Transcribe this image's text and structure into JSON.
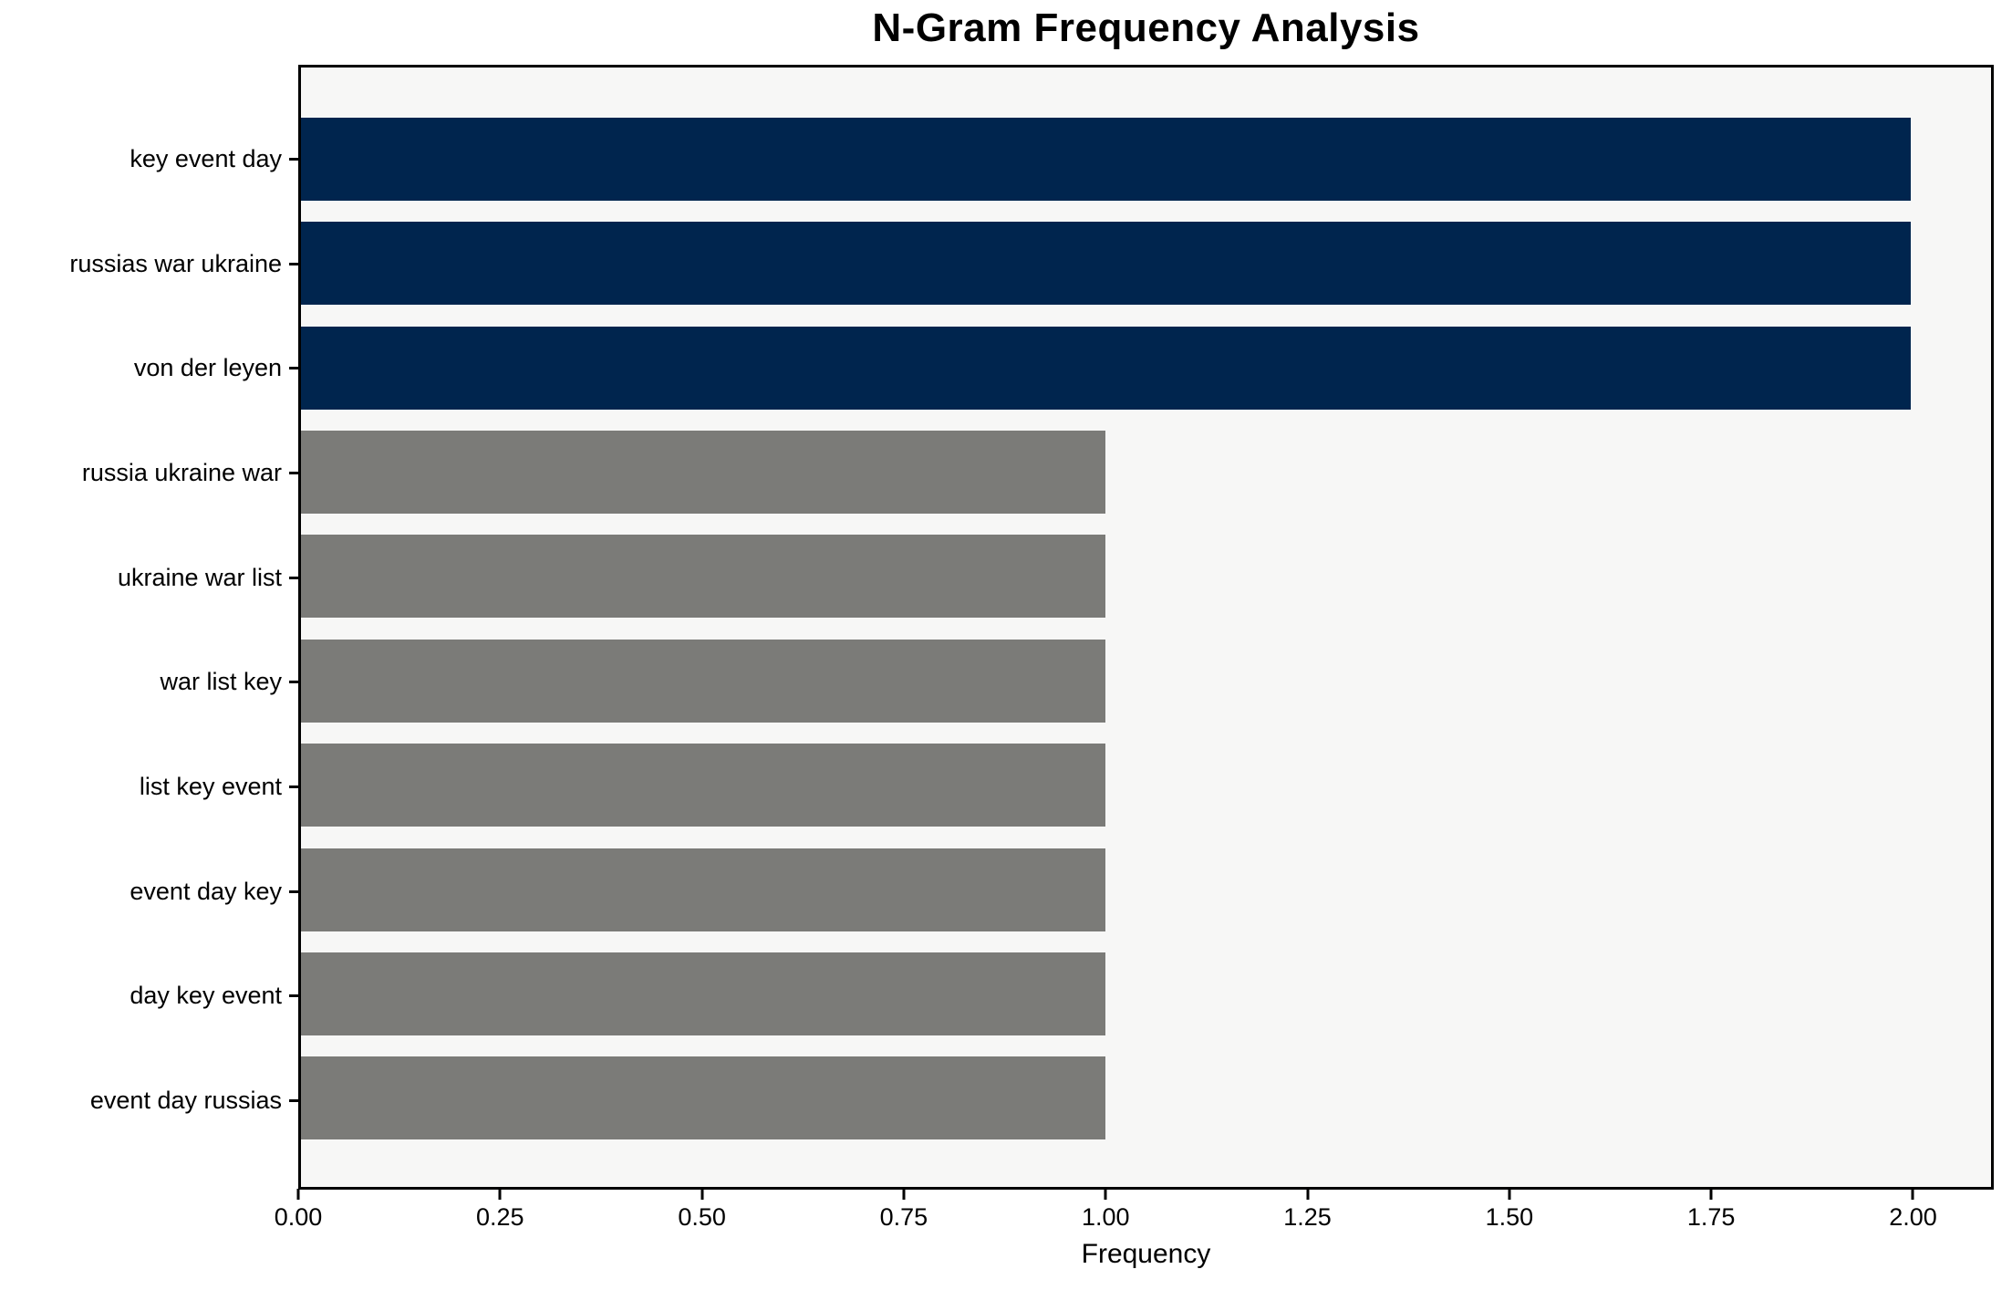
{
  "chart_data": {
    "type": "bar",
    "orientation": "horizontal",
    "title": "N-Gram Frequency Analysis",
    "xlabel": "Frequency",
    "ylabel": "",
    "categories": [
      "key event day",
      "russias war ukraine",
      "von der leyen",
      "russia ukraine war",
      "ukraine war list",
      "war list key",
      "list key event",
      "event day key",
      "day key event",
      "event day russias"
    ],
    "values": [
      2,
      2,
      2,
      1,
      1,
      1,
      1,
      1,
      1,
      1
    ],
    "bar_colors": [
      "#00254e",
      "#00254e",
      "#00254e",
      "#7b7b78",
      "#7b7b78",
      "#7b7b78",
      "#7b7b78",
      "#7b7b78",
      "#7b7b78",
      "#7b7b78"
    ],
    "xlim": [
      0,
      2.1
    ],
    "xtick_values": [
      0.0,
      0.25,
      0.5,
      0.75,
      1.0,
      1.25,
      1.5,
      1.75,
      2.0
    ],
    "xtick_labels": [
      "0.00",
      "0.25",
      "0.50",
      "0.75",
      "1.00",
      "1.25",
      "1.50",
      "1.75",
      "2.00"
    ],
    "grid": false,
    "legend": "none",
    "colors": {
      "highlight_bar": "#00254e",
      "default_bar": "#7b7b78",
      "plot_background": "#f7f7f6",
      "figure_background": "#ffffff",
      "spine": "#000000",
      "text": "#000000"
    }
  }
}
